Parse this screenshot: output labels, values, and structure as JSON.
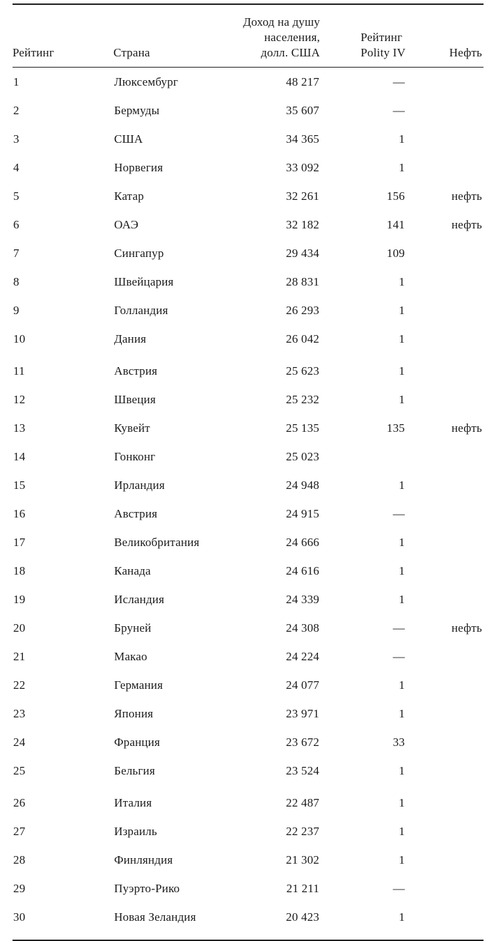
{
  "colors": {
    "text": "#1b1b1b",
    "rule": "#1f1f1f",
    "background": "#ffffff"
  },
  "table": {
    "header": {
      "rank": "Рейтинг",
      "country": "Страна",
      "income_lines": [
        "Доход на душу",
        "населения,",
        "долл. США"
      ],
      "polity_lines": [
        "Рейтинг",
        "Polity IV"
      ],
      "oil": "Нефть"
    },
    "group_start_ranks": [
      "11",
      "26"
    ],
    "rows": [
      {
        "rank": "1",
        "country": "Люксембург",
        "income": "48 217",
        "polity": "—",
        "oil": ""
      },
      {
        "rank": "2",
        "country": "Бермуды",
        "income": "35 607",
        "polity": "—",
        "oil": ""
      },
      {
        "rank": "3",
        "country": "США",
        "income": "34 365",
        "polity": "1",
        "oil": ""
      },
      {
        "rank": "4",
        "country": "Норвегия",
        "income": "33 092",
        "polity": "1",
        "oil": ""
      },
      {
        "rank": "5",
        "country": "Катар",
        "income": "32 261",
        "polity": "156",
        "oil": "нефть"
      },
      {
        "rank": "6",
        "country": "ОАЭ",
        "income": "32 182",
        "polity": "141",
        "oil": "нефть"
      },
      {
        "rank": "7",
        "country": "Сингапур",
        "income": "29 434",
        "polity": "109",
        "oil": ""
      },
      {
        "rank": "8",
        "country": "Швейцария",
        "income": "28 831",
        "polity": "1",
        "oil": ""
      },
      {
        "rank": "9",
        "country": "Голландия",
        "income": "26 293",
        "polity": "1",
        "oil": ""
      },
      {
        "rank": "10",
        "country": "Дания",
        "income": "26 042",
        "polity": "1",
        "oil": ""
      },
      {
        "rank": "11",
        "country": "Австрия",
        "income": "25 623",
        "polity": "1",
        "oil": ""
      },
      {
        "rank": "12",
        "country": "Швеция",
        "income": "25 232",
        "polity": "1",
        "oil": ""
      },
      {
        "rank": "13",
        "country": "Кувейт",
        "income": "25 135",
        "polity": "135",
        "oil": "нефть"
      },
      {
        "rank": "14",
        "country": "Гонконг",
        "income": "25 023",
        "polity": "",
        "oil": ""
      },
      {
        "rank": "15",
        "country": "Ирландия",
        "income": "24 948",
        "polity": "1",
        "oil": ""
      },
      {
        "rank": "16",
        "country": "Австрия",
        "income": "24 915",
        "polity": "—",
        "oil": ""
      },
      {
        "rank": "17",
        "country": "Великобритания",
        "income": "24 666",
        "polity": "1",
        "oil": ""
      },
      {
        "rank": "18",
        "country": "Канада",
        "income": "24 616",
        "polity": "1",
        "oil": ""
      },
      {
        "rank": "19",
        "country": "Исландия",
        "income": "24 339",
        "polity": "1",
        "oil": ""
      },
      {
        "rank": "20",
        "country": "Бруней",
        "income": "24 308",
        "polity": "—",
        "oil": "нефть"
      },
      {
        "rank": "21",
        "country": "Макао",
        "income": "24 224",
        "polity": "—",
        "oil": ""
      },
      {
        "rank": "22",
        "country": "Германия",
        "income": "24 077",
        "polity": "1",
        "oil": ""
      },
      {
        "rank": "23",
        "country": "Япония",
        "income": "23 971",
        "polity": "1",
        "oil": ""
      },
      {
        "rank": "24",
        "country": "Франция",
        "income": "23 672",
        "polity": "33",
        "oil": ""
      },
      {
        "rank": "25",
        "country": "Бельгия",
        "income": "23 524",
        "polity": "1",
        "oil": ""
      },
      {
        "rank": "26",
        "country": "Италия",
        "income": "22 487",
        "polity": "1",
        "oil": ""
      },
      {
        "rank": "27",
        "country": "Израиль",
        "income": "22 237",
        "polity": "1",
        "oil": ""
      },
      {
        "rank": "28",
        "country": "Финляндия",
        "income": "21 302",
        "polity": "1",
        "oil": ""
      },
      {
        "rank": "29",
        "country": "Пуэрто-Рико",
        "income": "21 211",
        "polity": "—",
        "oil": ""
      },
      {
        "rank": "30",
        "country": "Новая Зеландия",
        "income": "20 423",
        "polity": "1",
        "oil": ""
      }
    ]
  }
}
